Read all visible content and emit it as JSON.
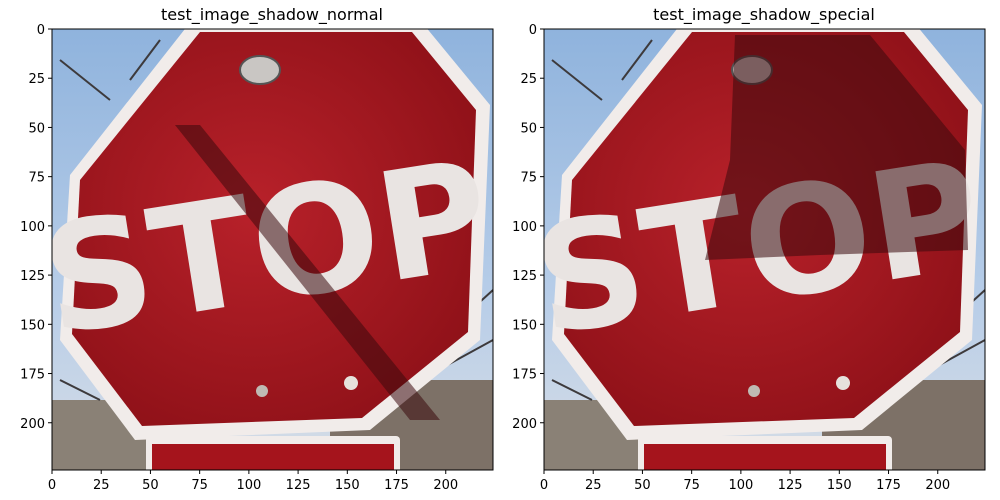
{
  "figure": {
    "panels": [
      {
        "title": "test_image_shadow_normal",
        "shadow": "diagonal",
        "sign_text": "STOP"
      },
      {
        "title": "test_image_shadow_special",
        "shadow": "polygon",
        "sign_text": "STOP"
      }
    ],
    "x_ticks": [
      "0",
      "25",
      "50",
      "75",
      "100",
      "125",
      "150",
      "175",
      "200"
    ],
    "y_ticks": [
      "0",
      "25",
      "50",
      "75",
      "100",
      "125",
      "150",
      "175",
      "200"
    ],
    "colors": {
      "sky": "#9fbde0",
      "sign_red": "#a5141c",
      "sign_border": "#f1ecea",
      "letters": "#e9e4e2",
      "shadow": "#3a0a0d"
    }
  }
}
